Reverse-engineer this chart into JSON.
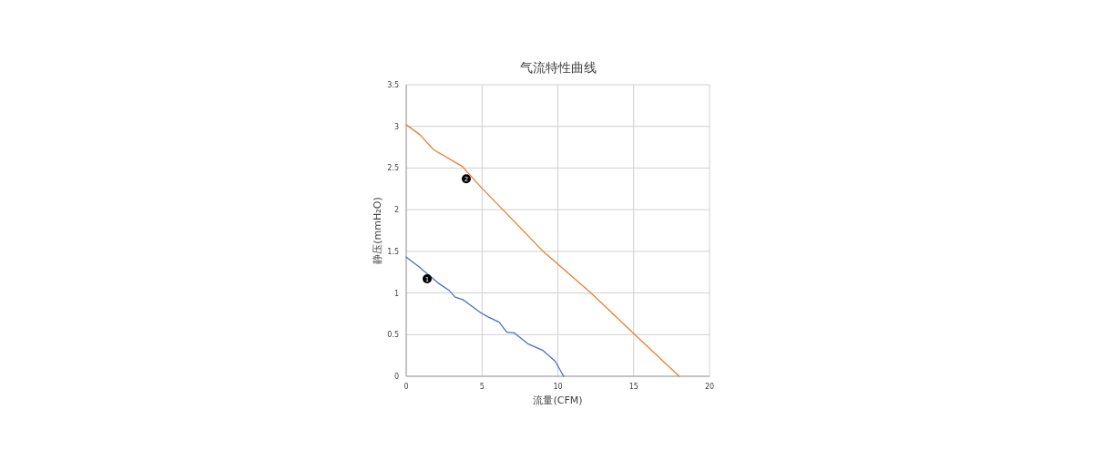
{
  "chart_data": {
    "type": "line",
    "title": "气流特性曲线",
    "xlabel": "流量(CFM)",
    "ylabel": "静压(mmH₂O)",
    "xlim": [
      0,
      20
    ],
    "ylim": [
      0,
      3.5
    ],
    "xticks": [
      0,
      5,
      10,
      15,
      20
    ],
    "yticks": [
      0,
      0.5,
      1,
      1.5,
      2,
      2.5,
      3,
      3.5
    ],
    "grid": true,
    "series": [
      {
        "color": "#4472c4",
        "x": [
          0,
          0.8,
          2.1,
          2.83,
          3.23,
          3.73,
          4.93,
          5.43,
          6.13,
          6.63,
          7.13,
          8.02,
          9.02,
          9.82,
          10.38
        ],
        "values": [
          1.43,
          1.32,
          1.12,
          1.03,
          0.95,
          0.92,
          0.76,
          0.71,
          0.65,
          0.53,
          0.52,
          0.39,
          0.31,
          0.18,
          0
        ]
      },
      {
        "color": "#ed7d31",
        "x": [
          0,
          0.9,
          1.8,
          3.69,
          4.98,
          6.37,
          8.07,
          9.02,
          12.18,
          15.07,
          18.0
        ],
        "values": [
          3.02,
          2.9,
          2.72,
          2.52,
          2.26,
          2.0,
          1.68,
          1.5,
          1.0,
          0.5,
          0
        ]
      }
    ],
    "annotations": [
      {
        "text": "1",
        "x": 1.38,
        "y": 1.17
      },
      {
        "text": "2",
        "x": 3.96,
        "y": 2.37
      }
    ]
  }
}
